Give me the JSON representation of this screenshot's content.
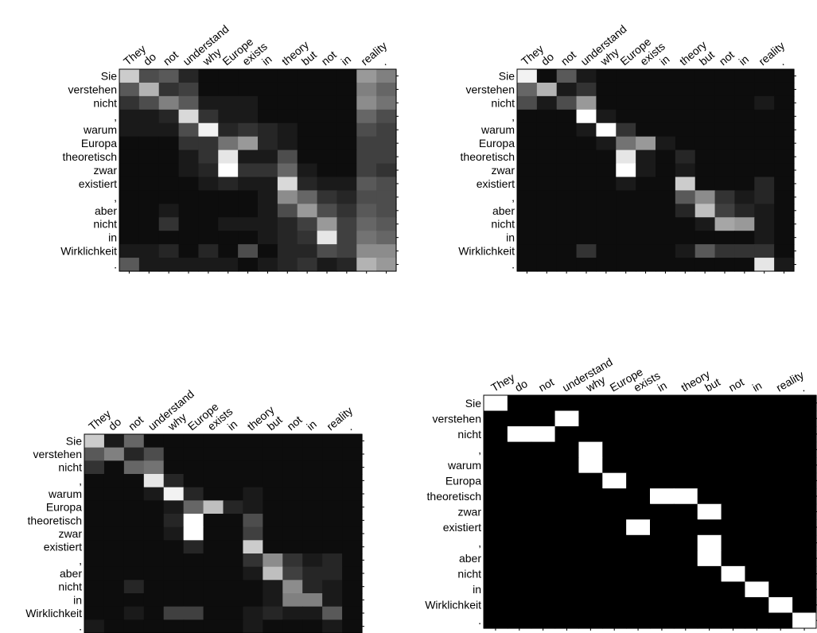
{
  "chart_data": [
    {
      "type": "heatmap",
      "panel": "top-left",
      "x_labels": [
        "They",
        "do",
        "not",
        "understand",
        "why",
        "Europe",
        "exists",
        "in",
        "theory",
        "but",
        "not",
        "in",
        "reality",
        "."
      ],
      "y_labels": [
        "Sie",
        "verstehen",
        "nicht",
        ",",
        "warum",
        "Europa",
        "theoretisch",
        "zwar",
        "existiert",
        ",",
        "aber",
        "nicht",
        "in",
        "Wirklichkeit",
        "."
      ],
      "values": [
        [
          0.8,
          0.3,
          0.35,
          0.15,
          0.05,
          0.05,
          0.05,
          0.05,
          0.05,
          0.05,
          0.05,
          0.05,
          0.6,
          0.5
        ],
        [
          0.35,
          0.7,
          0.2,
          0.25,
          0.05,
          0.05,
          0.05,
          0.05,
          0.05,
          0.05,
          0.05,
          0.05,
          0.5,
          0.4
        ],
        [
          0.2,
          0.3,
          0.5,
          0.35,
          0.1,
          0.1,
          0.1,
          0.05,
          0.05,
          0.05,
          0.05,
          0.05,
          0.55,
          0.45
        ],
        [
          0.1,
          0.1,
          0.15,
          0.85,
          0.2,
          0.1,
          0.1,
          0.05,
          0.05,
          0.05,
          0.05,
          0.05,
          0.4,
          0.3
        ],
        [
          0.1,
          0.1,
          0.1,
          0.3,
          0.95,
          0.15,
          0.2,
          0.15,
          0.1,
          0.05,
          0.05,
          0.05,
          0.3,
          0.25
        ],
        [
          0.05,
          0.05,
          0.05,
          0.2,
          0.2,
          0.45,
          0.6,
          0.15,
          0.1,
          0.05,
          0.05,
          0.05,
          0.25,
          0.25
        ],
        [
          0.05,
          0.05,
          0.05,
          0.1,
          0.2,
          0.9,
          0.1,
          0.1,
          0.3,
          0.05,
          0.05,
          0.05,
          0.25,
          0.25
        ],
        [
          0.05,
          0.05,
          0.05,
          0.1,
          0.15,
          1.0,
          0.2,
          0.2,
          0.4,
          0.1,
          0.05,
          0.05,
          0.25,
          0.2
        ],
        [
          0.05,
          0.05,
          0.05,
          0.05,
          0.1,
          0.15,
          0.1,
          0.1,
          0.85,
          0.15,
          0.1,
          0.1,
          0.35,
          0.3
        ],
        [
          0.05,
          0.05,
          0.05,
          0.05,
          0.05,
          0.05,
          0.05,
          0.1,
          0.55,
          0.4,
          0.2,
          0.15,
          0.3,
          0.3
        ],
        [
          0.05,
          0.05,
          0.1,
          0.05,
          0.05,
          0.05,
          0.05,
          0.1,
          0.3,
          0.6,
          0.3,
          0.2,
          0.35,
          0.3
        ],
        [
          0.05,
          0.05,
          0.2,
          0.05,
          0.05,
          0.1,
          0.1,
          0.1,
          0.15,
          0.25,
          0.6,
          0.25,
          0.4,
          0.35
        ],
        [
          0.05,
          0.05,
          0.05,
          0.05,
          0.05,
          0.05,
          0.05,
          0.1,
          0.15,
          0.2,
          0.9,
          0.25,
          0.45,
          0.4
        ],
        [
          0.1,
          0.1,
          0.15,
          0.05,
          0.15,
          0.05,
          0.3,
          0.05,
          0.15,
          0.15,
          0.3,
          0.25,
          0.55,
          0.55
        ],
        [
          0.35,
          0.1,
          0.1,
          0.1,
          0.1,
          0.1,
          0.05,
          0.1,
          0.15,
          0.2,
          0.1,
          0.15,
          0.7,
          0.6
        ]
      ]
    },
    {
      "type": "heatmap",
      "panel": "top-right",
      "x_labels": [
        "They",
        "do",
        "not",
        "understand",
        "why",
        "Europe",
        "exists",
        "in",
        "theory",
        "but",
        "not",
        "in",
        "reality",
        "."
      ],
      "y_labels": [
        "Sie",
        "verstehen",
        "nicht",
        ",",
        "warum",
        "Europa",
        "theoretisch",
        "zwar",
        "existiert",
        ",",
        "aber",
        "nicht",
        "in",
        "Wirklichkeit",
        "."
      ],
      "values": [
        [
          0.95,
          0.05,
          0.35,
          0.1,
          0.05,
          0.05,
          0.05,
          0.05,
          0.05,
          0.05,
          0.05,
          0.05,
          0.05,
          0.05
        ],
        [
          0.4,
          0.7,
          0.1,
          0.2,
          0.05,
          0.05,
          0.05,
          0.05,
          0.05,
          0.05,
          0.05,
          0.05,
          0.05,
          0.05
        ],
        [
          0.3,
          0.1,
          0.3,
          0.6,
          0.05,
          0.05,
          0.05,
          0.05,
          0.05,
          0.05,
          0.05,
          0.05,
          0.1,
          0.05
        ],
        [
          0.05,
          0.05,
          0.05,
          1.0,
          0.1,
          0.05,
          0.05,
          0.05,
          0.05,
          0.05,
          0.05,
          0.05,
          0.05,
          0.05
        ],
        [
          0.05,
          0.05,
          0.05,
          0.1,
          1.0,
          0.2,
          0.05,
          0.05,
          0.05,
          0.05,
          0.05,
          0.05,
          0.05,
          0.05
        ],
        [
          0.05,
          0.05,
          0.05,
          0.05,
          0.1,
          0.45,
          0.6,
          0.1,
          0.05,
          0.05,
          0.05,
          0.05,
          0.05,
          0.05
        ],
        [
          0.05,
          0.05,
          0.05,
          0.05,
          0.05,
          0.9,
          0.1,
          0.05,
          0.15,
          0.05,
          0.05,
          0.05,
          0.05,
          0.05
        ],
        [
          0.05,
          0.05,
          0.05,
          0.05,
          0.05,
          1.0,
          0.1,
          0.05,
          0.1,
          0.05,
          0.05,
          0.05,
          0.05,
          0.05
        ],
        [
          0.05,
          0.05,
          0.05,
          0.05,
          0.05,
          0.1,
          0.05,
          0.05,
          0.8,
          0.05,
          0.05,
          0.05,
          0.15,
          0.05
        ],
        [
          0.05,
          0.05,
          0.05,
          0.05,
          0.05,
          0.05,
          0.05,
          0.05,
          0.35,
          0.55,
          0.2,
          0.1,
          0.15,
          0.05
        ],
        [
          0.05,
          0.05,
          0.05,
          0.05,
          0.05,
          0.05,
          0.05,
          0.05,
          0.15,
          0.75,
          0.25,
          0.15,
          0.1,
          0.05
        ],
        [
          0.05,
          0.05,
          0.05,
          0.05,
          0.05,
          0.05,
          0.05,
          0.05,
          0.05,
          0.1,
          0.65,
          0.6,
          0.1,
          0.05
        ],
        [
          0.05,
          0.05,
          0.05,
          0.05,
          0.05,
          0.05,
          0.05,
          0.05,
          0.05,
          0.05,
          0.05,
          0.05,
          0.1,
          0.05
        ],
        [
          0.05,
          0.05,
          0.05,
          0.2,
          0.05,
          0.05,
          0.05,
          0.05,
          0.1,
          0.35,
          0.2,
          0.2,
          0.2,
          0.05
        ],
        [
          0.05,
          0.05,
          0.05,
          0.05,
          0.05,
          0.05,
          0.05,
          0.05,
          0.05,
          0.05,
          0.05,
          0.05,
          0.9,
          0.1
        ]
      ]
    },
    {
      "type": "heatmap",
      "panel": "bottom-left",
      "x_labels": [
        "They",
        "do",
        "not",
        "understand",
        "why",
        "Europe",
        "exists",
        "in",
        "theory",
        "but",
        "not",
        "in",
        "reality",
        "."
      ],
      "y_labels": [
        "Sie",
        "verstehen",
        "nicht",
        ",",
        "warum",
        "Europa",
        "theoretisch",
        "zwar",
        "existiert",
        ",",
        "aber",
        "nicht",
        "in",
        "Wirklichkeit",
        "."
      ],
      "values": [
        [
          0.8,
          0.1,
          0.4,
          0.05,
          0.05,
          0.05,
          0.05,
          0.05,
          0.05,
          0.05,
          0.05,
          0.05,
          0.05,
          0.05
        ],
        [
          0.35,
          0.5,
          0.15,
          0.3,
          0.05,
          0.05,
          0.05,
          0.05,
          0.05,
          0.05,
          0.05,
          0.05,
          0.05,
          0.05
        ],
        [
          0.2,
          0.05,
          0.4,
          0.45,
          0.05,
          0.05,
          0.05,
          0.05,
          0.05,
          0.05,
          0.05,
          0.05,
          0.05,
          0.05
        ],
        [
          0.05,
          0.05,
          0.05,
          0.9,
          0.15,
          0.05,
          0.05,
          0.05,
          0.05,
          0.05,
          0.05,
          0.05,
          0.05,
          0.05
        ],
        [
          0.05,
          0.05,
          0.05,
          0.1,
          0.95,
          0.15,
          0.05,
          0.05,
          0.1,
          0.05,
          0.05,
          0.05,
          0.05,
          0.05
        ],
        [
          0.05,
          0.05,
          0.05,
          0.05,
          0.1,
          0.4,
          0.75,
          0.15,
          0.1,
          0.05,
          0.05,
          0.05,
          0.05,
          0.05
        ],
        [
          0.05,
          0.05,
          0.05,
          0.05,
          0.15,
          1.0,
          0.05,
          0.05,
          0.3,
          0.05,
          0.05,
          0.05,
          0.05,
          0.05
        ],
        [
          0.05,
          0.05,
          0.05,
          0.05,
          0.1,
          1.0,
          0.05,
          0.05,
          0.25,
          0.05,
          0.05,
          0.05,
          0.05,
          0.05
        ],
        [
          0.05,
          0.05,
          0.05,
          0.05,
          0.05,
          0.15,
          0.05,
          0.05,
          0.8,
          0.05,
          0.05,
          0.05,
          0.05,
          0.05
        ],
        [
          0.05,
          0.05,
          0.05,
          0.05,
          0.05,
          0.05,
          0.05,
          0.05,
          0.2,
          0.55,
          0.2,
          0.1,
          0.15,
          0.05
        ],
        [
          0.05,
          0.05,
          0.05,
          0.05,
          0.05,
          0.05,
          0.05,
          0.05,
          0.1,
          0.75,
          0.25,
          0.15,
          0.15,
          0.05
        ],
        [
          0.05,
          0.05,
          0.15,
          0.05,
          0.05,
          0.05,
          0.05,
          0.05,
          0.05,
          0.1,
          0.55,
          0.15,
          0.1,
          0.05
        ],
        [
          0.05,
          0.05,
          0.05,
          0.05,
          0.05,
          0.05,
          0.05,
          0.05,
          0.05,
          0.1,
          0.5,
          0.5,
          0.1,
          0.05
        ],
        [
          0.05,
          0.05,
          0.1,
          0.05,
          0.25,
          0.25,
          0.05,
          0.05,
          0.1,
          0.15,
          0.1,
          0.1,
          0.35,
          0.05
        ],
        [
          0.1,
          0.05,
          0.05,
          0.05,
          0.05,
          0.05,
          0.05,
          0.05,
          0.1,
          0.05,
          0.05,
          0.05,
          0.1,
          0.05
        ]
      ]
    },
    {
      "type": "heatmap",
      "panel": "bottom-right",
      "x_labels": [
        "They",
        "do",
        "not",
        "understand",
        "why",
        "Europe",
        "exists",
        "in",
        "theory",
        "but",
        "not",
        "in",
        "reality",
        "."
      ],
      "y_labels": [
        "Sie",
        "verstehen",
        "nicht",
        ",",
        "warum",
        "Europa",
        "theoretisch",
        "zwar",
        "existiert",
        ",",
        "aber",
        "nicht",
        "in",
        "Wirklichkeit",
        "."
      ],
      "values": [
        [
          1,
          0,
          0,
          0,
          0,
          0,
          0,
          0,
          0,
          0,
          0,
          0,
          0,
          0
        ],
        [
          0,
          0,
          0,
          1,
          0,
          0,
          0,
          0,
          0,
          0,
          0,
          0,
          0,
          0
        ],
        [
          0,
          1,
          1,
          0,
          0,
          0,
          0,
          0,
          0,
          0,
          0,
          0,
          0,
          0
        ],
        [
          0,
          0,
          0,
          0,
          1,
          0,
          0,
          0,
          0,
          0,
          0,
          0,
          0,
          0
        ],
        [
          0,
          0,
          0,
          0,
          1,
          0,
          0,
          0,
          0,
          0,
          0,
          0,
          0,
          0
        ],
        [
          0,
          0,
          0,
          0,
          0,
          1,
          0,
          0,
          0,
          0,
          0,
          0,
          0,
          0
        ],
        [
          0,
          0,
          0,
          0,
          0,
          0,
          0,
          1,
          1,
          0,
          0,
          0,
          0,
          0
        ],
        [
          0,
          0,
          0,
          0,
          0,
          0,
          0,
          0,
          0,
          1,
          0,
          0,
          0,
          0
        ],
        [
          0,
          0,
          0,
          0,
          0,
          0,
          1,
          0,
          0,
          0,
          0,
          0,
          0,
          0
        ],
        [
          0,
          0,
          0,
          0,
          0,
          0,
          0,
          0,
          0,
          1,
          0,
          0,
          0,
          0
        ],
        [
          0,
          0,
          0,
          0,
          0,
          0,
          0,
          0,
          0,
          1,
          0,
          0,
          0,
          0
        ],
        [
          0,
          0,
          0,
          0,
          0,
          0,
          0,
          0,
          0,
          0,
          1,
          0,
          0,
          0
        ],
        [
          0,
          0,
          0,
          0,
          0,
          0,
          0,
          0,
          0,
          0,
          0,
          1,
          0,
          0
        ],
        [
          0,
          0,
          0,
          0,
          0,
          0,
          0,
          0,
          0,
          0,
          0,
          0,
          1,
          0
        ],
        [
          0,
          0,
          0,
          0,
          0,
          0,
          0,
          0,
          0,
          0,
          0,
          0,
          0,
          1
        ]
      ]
    }
  ]
}
